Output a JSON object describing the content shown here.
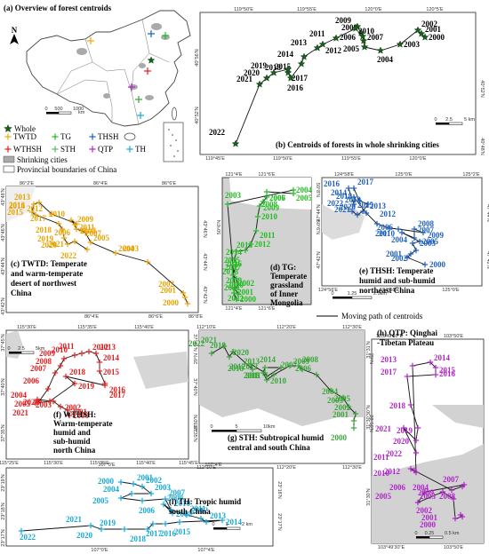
{
  "overview": {
    "title": "(a) Overview of forest centroids",
    "north": "N",
    "scale": [
      "0",
      "500",
      "1000",
      "km"
    ],
    "legend": [
      {
        "symbol": "star",
        "color": "#1b5e20",
        "label": "Whole"
      },
      {
        "symbol": "cross",
        "color": "#f0a800",
        "label": "TWTD"
      },
      {
        "symbol": "cross",
        "color": "#22bb22",
        "label": "TG"
      },
      {
        "symbol": "cross",
        "color": "#1f5fbf",
        "label": "THSH"
      },
      {
        "symbol": "cross",
        "color": "#e02020",
        "label": "WTHSH"
      },
      {
        "symbol": "cross",
        "color": "#5cb85c",
        "label": "STH"
      },
      {
        "symbol": "cross",
        "color": "#b026c8",
        "label": "QTP"
      },
      {
        "symbol": "cross",
        "color": "#18a8d8",
        "label": "TH"
      }
    ],
    "legend_areas": [
      "Shrinking cities",
      "Provincial boundaries of China"
    ]
  },
  "panels": {
    "b": {
      "caption": "(b) Centroids of forests in whole shrinking cities",
      "color": "#1b5e20",
      "top_ticks": [
        "119°50'E",
        "119°55'E",
        "120°0'E",
        "120°5'E"
      ],
      "bottom_ticks": [
        "119°45'E",
        "119°50'E",
        "119°55'E",
        "120°0'E"
      ],
      "left_ticks": [
        "40°56'N",
        "40°52'N"
      ],
      "right_ticks": [
        "40°52'N",
        "40°48'N"
      ],
      "scale": [
        "0",
        "2.5",
        "5 km"
      ],
      "years": [
        "2000",
        "2001",
        "2002",
        "2003",
        "2004",
        "2005",
        "2006",
        "2007",
        "2008",
        "2009",
        "2010",
        "2011",
        "2012",
        "2013",
        "2014",
        "2015",
        "2016",
        "2017",
        "2018",
        "2019",
        "2020",
        "2021",
        "2022"
      ]
    },
    "c": {
      "caption": [
        "(c) TWTD: Temperate",
        "and warm-temperate",
        "desert of northwest",
        "China"
      ],
      "color": "#e8a200",
      "top_ticks": [
        "86°2'E",
        "86°4'E",
        "86°6'E"
      ],
      "bottom_ticks": [
        "86°4'E",
        "86°6'E",
        "86°8'E"
      ],
      "left_ticks": [
        "43°48'N",
        "43°46'N",
        "43°44'N",
        "43°42'N"
      ],
      "right_ticks": [
        "43°46'N",
        "43°44'N",
        "43°42'N"
      ],
      "years": [
        "2000",
        "2001",
        "2002",
        "2003",
        "2004",
        "2005",
        "2006",
        "2007",
        "2008",
        "2009",
        "2010",
        "2011",
        "2012",
        "2013",
        "2014",
        "2015",
        "2016",
        "2017",
        "2018",
        "2019",
        "2020",
        "2021",
        "2022"
      ]
    },
    "d": {
      "caption": [
        "(d) TG:",
        "Temperate",
        "grassland",
        "of Inner",
        "Mongolia"
      ],
      "color": "#22bb22",
      "top_ticks": [
        "121°4'E",
        "121°6'E"
      ],
      "bottom_ticks": [
        "121°4'E",
        "121°6'E"
      ],
      "left_ticks": [
        "50°6'N"
      ],
      "right_ticks": [
        "50°8'N",
        "50°6'N"
      ],
      "years": [
        "2000",
        "2001",
        "2002",
        "2003",
        "2004",
        "2005",
        "2006",
        "2007",
        "2008",
        "2009",
        "2010",
        "2011",
        "2012",
        "2013",
        "2014",
        "2015",
        "2016",
        "2017",
        "2018",
        "2019",
        "2020",
        "2021",
        "2022"
      ]
    },
    "e": {
      "caption": [
        "(e) THSH: Temperate",
        "humid and sub-humid",
        "northeast China"
      ],
      "color": "#1f5fbf",
      "top_ticks": [
        "124°58'E",
        "125°0'E",
        "125°2'E"
      ],
      "bottom_ticks": [
        "124°56'E",
        "124°58'E",
        "125°0'E"
      ],
      "left_ticks": [
        "47°44'N",
        "47°42'N"
      ],
      "right_ticks": [
        "47°44'N",
        "47°42'N"
      ],
      "scale": [
        "0",
        "1.25",
        "2.5km"
      ],
      "years": [
        "2000",
        "2001",
        "2002",
        "2003",
        "2004",
        "2005",
        "2006",
        "2007",
        "2008",
        "2009",
        "2010",
        "2011",
        "2012",
        "2013",
        "2014",
        "2015",
        "2016",
        "2017",
        "2018",
        "2019",
        "2020",
        "2021",
        "2022"
      ]
    },
    "moving_path_label": "Moving path of centroids",
    "f": {
      "caption": [
        "(f) WTHSH:",
        "Warm-temperate",
        "humid and",
        "sub-humid",
        "north China"
      ],
      "color": "#e02020",
      "top_ticks": [
        "115°30'E",
        "115°35'E",
        "115°40'E"
      ],
      "bottom_ticks": [
        "115°25'E",
        "115°30'E",
        "115°35'E",
        "115°40'E",
        "115°45'E"
      ],
      "left_ticks": [
        "37°45'N",
        "37°40'N",
        "37°35'N"
      ],
      "right_ticks": [
        "37°45'N",
        "37°40'N",
        "37°35'N"
      ],
      "scale": [
        "0",
        "2.5",
        "5km"
      ],
      "years": [
        "2000",
        "2001",
        "2002",
        "2003",
        "2004",
        "2005",
        "2006",
        "2007",
        "2008",
        "2009",
        "2010",
        "2011",
        "2012",
        "2013",
        "2014",
        "2015",
        "2016",
        "2017",
        "2018",
        "2019",
        "2020",
        "2021"
      ]
    },
    "g": {
      "caption": [
        "(g) STH: Subtropical humid",
        "central and south China"
      ],
      "color": "#3aa63a",
      "top_ticks": [
        "112°10'E",
        "112°20'E",
        "112°30'E"
      ],
      "bottom_ticks": [
        "112°10'E",
        "112°20'E",
        "112°30'E"
      ],
      "left_ticks": [
        "29°N",
        "28°50'N"
      ],
      "right_ticks": [
        "29°N",
        "28°50'N"
      ],
      "scale": [
        "0",
        "5",
        "10km"
      ],
      "years": [
        "2000",
        "2001",
        "2002",
        "2003",
        "2004",
        "2005",
        "2006",
        "2007",
        "2008",
        "2009",
        "2010",
        "2011",
        "2012",
        "2013",
        "2014",
        "2015",
        "2016",
        "2017",
        "2018",
        "2019",
        "2020",
        "2021",
        "2022"
      ]
    },
    "h": {
      "caption": [
        "(h) QTP: Qinghai",
        "-Tibetan Plateau"
      ],
      "color": "#b026c8",
      "top_ticks": [
        "103°49'30\"E",
        "103°50'E"
      ],
      "bottom_ticks": [
        "103°49'30\"E",
        "103°50'E"
      ],
      "left_ticks": [
        "31°31'N",
        "31°30'30\"N",
        "31°30'N"
      ],
      "right_ticks": [
        "31°31'N",
        "31°30'30\"N",
        "31°30'N"
      ],
      "scale": [
        "0",
        "0.25",
        "0.5 km"
      ],
      "years": [
        "2000",
        "2001",
        "2002",
        "2003",
        "2004",
        "2005",
        "2006",
        "2007",
        "2008",
        "2009",
        "2010",
        "2011",
        "2012",
        "2013",
        "2014",
        "2015",
        "2016",
        "2017",
        "2018",
        "2019",
        "2020",
        "2021",
        "2022"
      ]
    },
    "i": {
      "caption": [
        "(i) TH: Tropic humid",
        "south China"
      ],
      "color": "#18a8d8",
      "top_ticks": [
        "107°0'E",
        "107°4'E"
      ],
      "bottom_ticks": [
        "107°0'E",
        "107°4'E"
      ],
      "left_ticks": [
        "23°19'N",
        "23°18'N",
        "23°17'N"
      ],
      "right_ticks": [
        "23°18'N",
        "23°17'N"
      ],
      "scale": [
        "0",
        "1",
        "2 km"
      ],
      "years": [
        "2000",
        "2001",
        "2002",
        "2003",
        "2004",
        "2005",
        "2006",
        "2007",
        "2008",
        "2009",
        "2010",
        "2011",
        "2012",
        "2013",
        "2014",
        "2015",
        "2016",
        "2017",
        "2018",
        "2019",
        "2020",
        "2021",
        "2022"
      ]
    }
  }
}
